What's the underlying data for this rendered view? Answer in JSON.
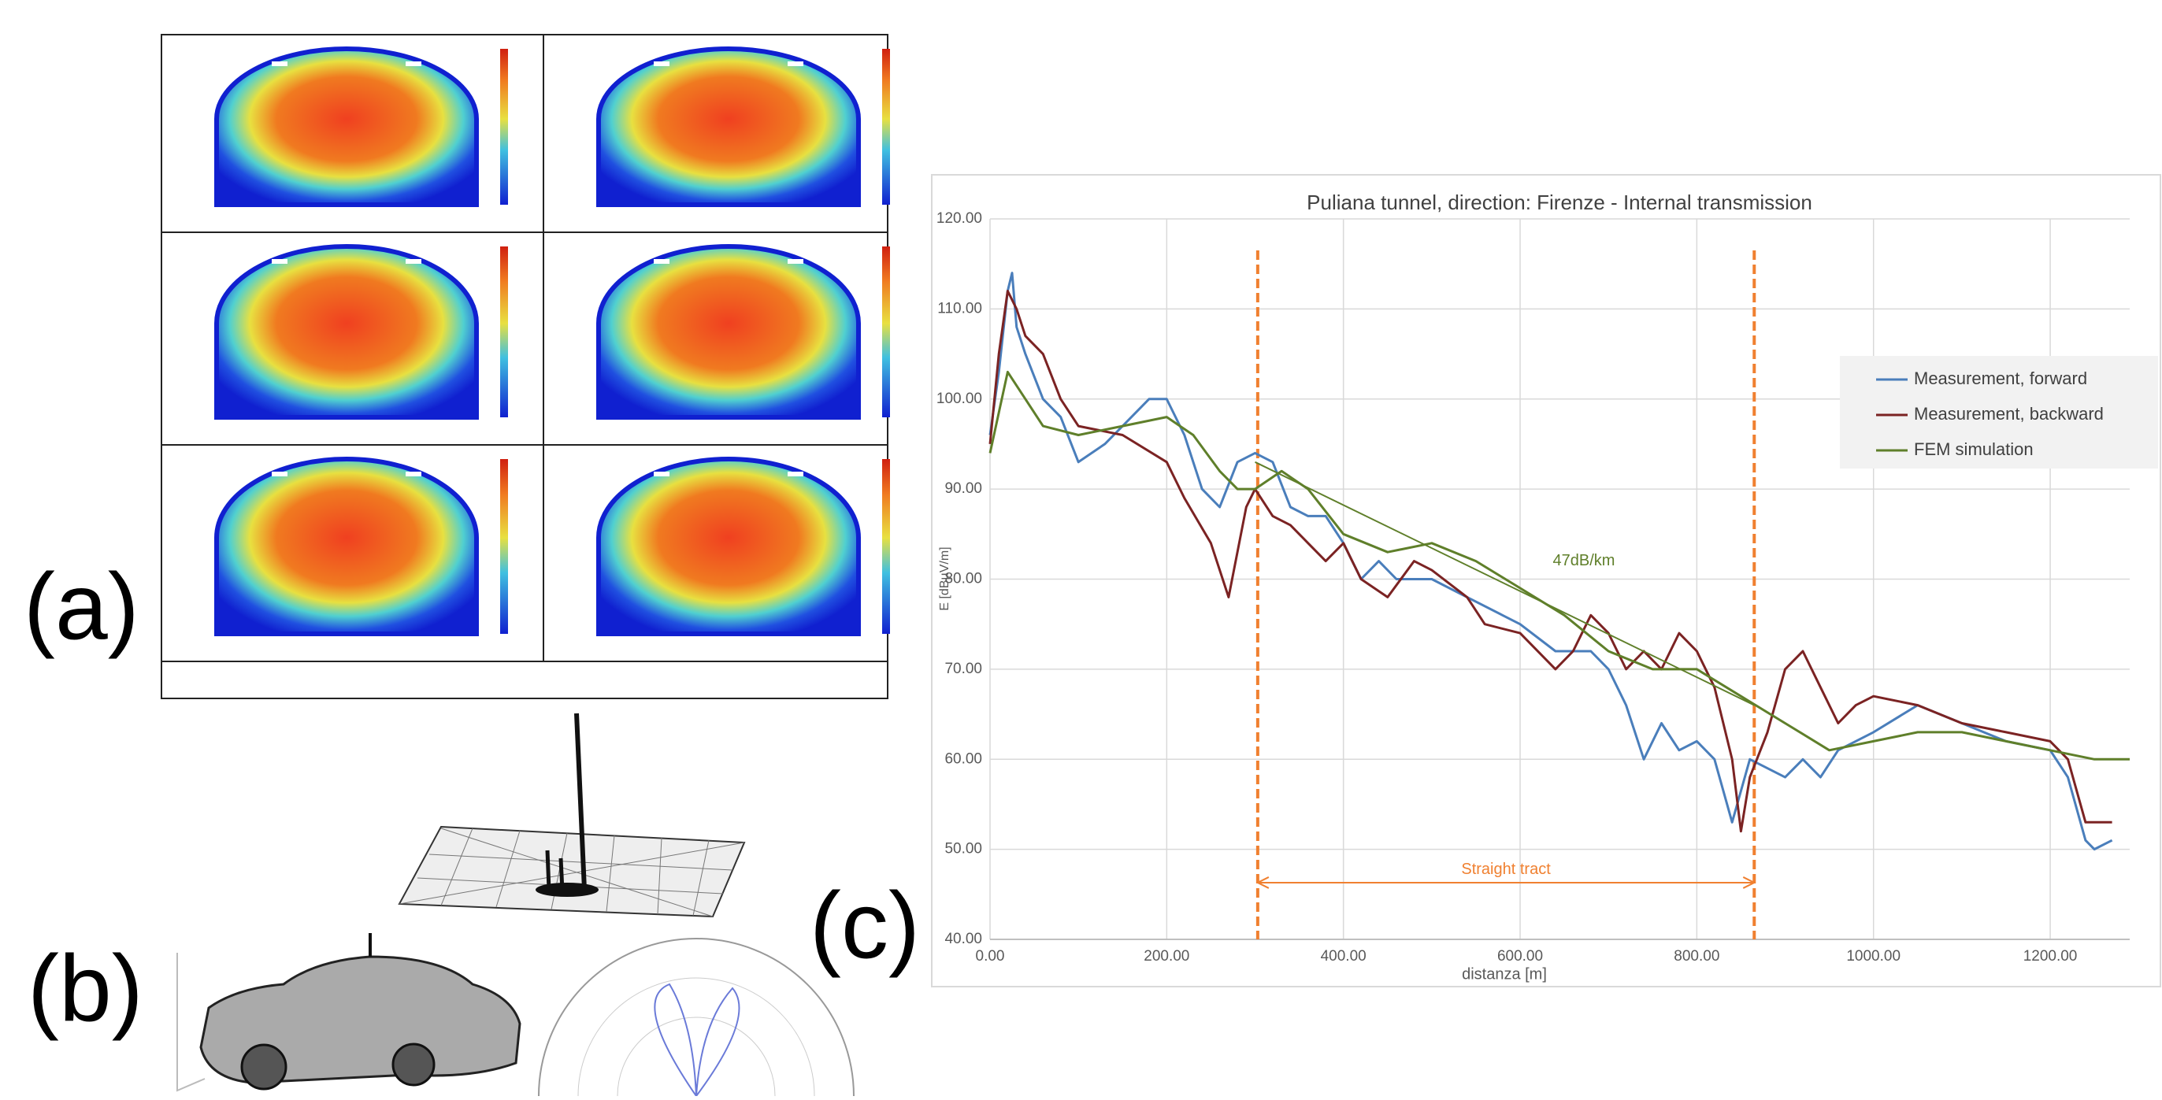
{
  "panel_labels": {
    "a": "(a)",
    "b": "(b)",
    "c": "(c)"
  },
  "chart_data": {
    "type": "line",
    "title": "Puliana tunnel, direction: Firenze - Internal transmission",
    "x_label": "distanza [m]",
    "y_label": "E [dBµV/m]",
    "xlim": [
      0,
      1290
    ],
    "ylim": [
      40,
      120
    ],
    "xticks": [
      {
        "value": 0,
        "label": "0.00"
      },
      {
        "value": 200,
        "label": "200.00"
      },
      {
        "value": 400,
        "label": "400.00"
      },
      {
        "value": 600,
        "label": "600.00"
      },
      {
        "value": 800,
        "label": "800.00"
      },
      {
        "value": 1000,
        "label": "1000.00"
      },
      {
        "value": 1200,
        "label": "1200.00"
      }
    ],
    "yticks": [
      {
        "value": 40,
        "label": "40.00"
      },
      {
        "value": 50,
        "label": "50.00"
      },
      {
        "value": 60,
        "label": "60.00"
      },
      {
        "value": 70,
        "label": "70.00"
      },
      {
        "value": 80,
        "label": "80.00"
      },
      {
        "value": 90,
        "label": "90.00"
      },
      {
        "value": 100,
        "label": "100.00"
      },
      {
        "value": 110,
        "label": "110.00"
      },
      {
        "value": 120,
        "label": "120.00"
      }
    ],
    "grid": true,
    "legend": "right",
    "series": [
      {
        "name": "Measurement, forward",
        "color": "#4a7ebb",
        "x": [
          0,
          10,
          20,
          25,
          30,
          40,
          60,
          80,
          100,
          130,
          150,
          180,
          200,
          220,
          240,
          260,
          280,
          300,
          320,
          340,
          360,
          380,
          400,
          420,
          440,
          460,
          500,
          540,
          580,
          600,
          640,
          680,
          700,
          720,
          740,
          760,
          780,
          800,
          820,
          840,
          860,
          880,
          900,
          920,
          940,
          960,
          1000,
          1050,
          1100,
          1150,
          1200,
          1220,
          1240,
          1250,
          1270
        ],
        "values": [
          96,
          103,
          112,
          114,
          108,
          105,
          100,
          98,
          93,
          95,
          97,
          100,
          100,
          96,
          90,
          88,
          93,
          94,
          93,
          88,
          87,
          87,
          84,
          80,
          82,
          80,
          80,
          78,
          76,
          75,
          72,
          72,
          70,
          66,
          60,
          64,
          61,
          62,
          60,
          53,
          60,
          59,
          58,
          60,
          58,
          61,
          63,
          66,
          64,
          62,
          61,
          58,
          51,
          50,
          51
        ]
      },
      {
        "name": "Measurement, backward",
        "color": "#7b2323",
        "x": [
          0,
          10,
          20,
          30,
          40,
          60,
          80,
          100,
          150,
          200,
          220,
          250,
          270,
          290,
          300,
          320,
          340,
          360,
          380,
          400,
          420,
          450,
          480,
          500,
          540,
          560,
          600,
          640,
          660,
          680,
          700,
          720,
          740,
          760,
          780,
          800,
          820,
          840,
          850,
          860,
          880,
          900,
          920,
          940,
          960,
          980,
          1000,
          1050,
          1100,
          1150,
          1200,
          1220,
          1240,
          1270
        ],
        "values": [
          95,
          105,
          112,
          110,
          107,
          105,
          100,
          97,
          96,
          93,
          89,
          84,
          78,
          88,
          90,
          87,
          86,
          84,
          82,
          84,
          80,
          78,
          82,
          81,
          78,
          75,
          74,
          70,
          72,
          76,
          74,
          70,
          72,
          70,
          74,
          72,
          68,
          60,
          52,
          58,
          63,
          70,
          72,
          68,
          64,
          66,
          67,
          66,
          64,
          63,
          62,
          60,
          53,
          53
        ]
      },
      {
        "name": "FEM simulation",
        "color": "#5f7f2a",
        "x": [
          0,
          20,
          40,
          60,
          100,
          150,
          200,
          230,
          260,
          280,
          300,
          330,
          360,
          400,
          450,
          500,
          550,
          600,
          650,
          700,
          750,
          800,
          850,
          900,
          950,
          1000,
          1050,
          1100,
          1150,
          1200,
          1250,
          1290
        ],
        "values": [
          94,
          103,
          100,
          97,
          96,
          97,
          98,
          96,
          92,
          90,
          90,
          92,
          90,
          85,
          83,
          84,
          82,
          79,
          76,
          72,
          70,
          70,
          67,
          64,
          61,
          62,
          63,
          63,
          62,
          61,
          60,
          60
        ]
      }
    ],
    "trend": {
      "x": [
        300,
        865
      ],
      "values": [
        93,
        66
      ],
      "color": "#5f7f2a"
    },
    "annotation": {
      "text": "47dB/km",
      "x": 637,
      "y": 82
    },
    "vlines": [
      303,
      865
    ],
    "vline_color": "#f08030",
    "tract": {
      "label": "Straight tract",
      "y": 46.3
    }
  }
}
